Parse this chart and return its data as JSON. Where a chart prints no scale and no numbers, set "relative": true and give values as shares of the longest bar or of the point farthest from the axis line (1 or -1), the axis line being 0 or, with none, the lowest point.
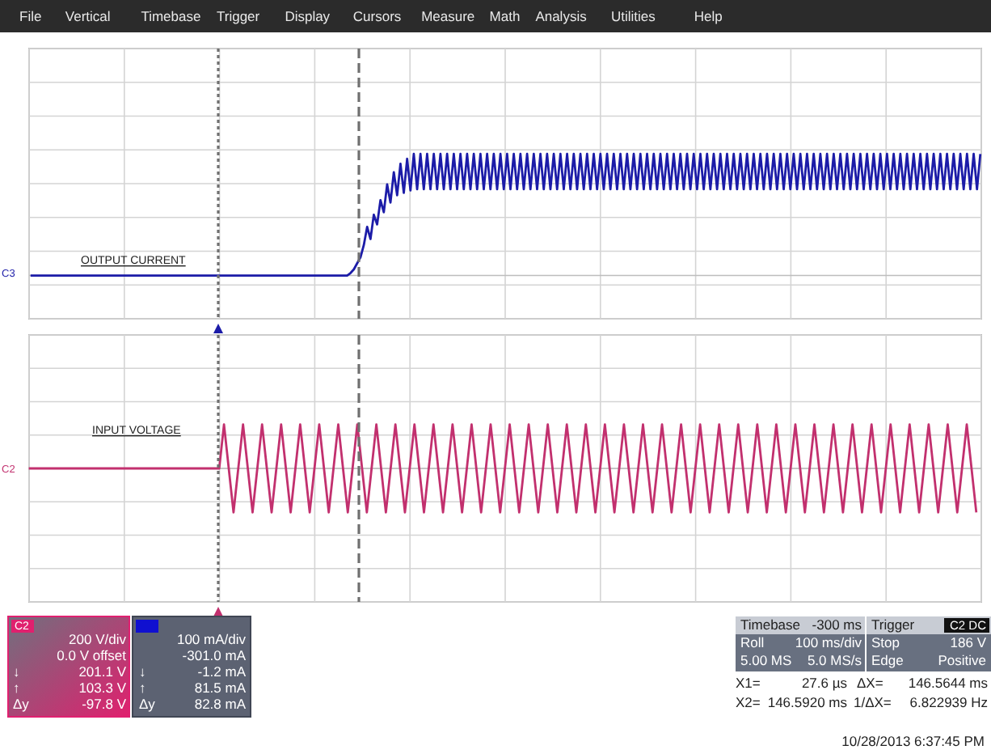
{
  "chart_data": [
    {
      "type": "line",
      "relative": true,
      "grid": true,
      "categories": [
        null,
        null,
        null,
        null,
        null,
        null,
        null,
        null,
        null,
        null,
        null,
        null,
        null,
        null,
        null,
        null,
        null,
        null,
        null,
        null,
        null,
        null,
        null,
        null,
        null,
        null,
        null,
        null,
        null,
        null,
        null,
        null,
        null,
        null,
        null,
        null,
        null,
        null,
        null,
        null,
        null,
        null,
        null,
        null,
        null,
        null,
        null,
        null,
        null,
        null,
        null,
        null,
        null,
        null,
        null,
        null,
        null,
        null,
        null,
        null,
        null,
        null,
        null,
        null,
        null,
        null,
        null,
        null,
        null,
        null,
        null,
        null,
        null,
        null,
        null,
        null,
        null,
        null,
        null,
        null,
        null,
        null,
        null,
        null,
        null,
        null,
        null,
        null,
        null,
        null,
        null,
        null,
        null,
        null,
        null,
        null,
        null,
        null,
        null,
        null,
        null,
        null,
        null,
        null,
        null,
        null,
        null,
        null,
        null,
        null,
        null,
        null,
        null,
        null,
        null,
        null,
        null,
        null,
        null,
        null,
        null,
        null,
        null,
        null,
        null,
        null,
        null,
        null,
        null,
        null,
        null,
        null,
        null,
        null,
        null,
        null,
        null,
        null,
        null,
        null,
        null,
        null,
        null,
        null,
        null,
        null,
        null,
        null,
        null,
        null,
        null,
        null,
        null,
        null,
        null,
        null,
        null,
        null,
        null,
        null,
        null,
        null,
        null,
        null,
        null,
        null,
        null,
        null,
        null,
        null,
        null,
        null,
        null,
        null,
        null,
        null,
        null,
        null,
        null,
        null,
        null,
        null,
        null,
        null,
        null,
        null,
        null,
        null,
        null,
        null,
        null,
        null,
        null,
        null,
        null,
        null,
        null,
        null,
        null,
        null,
        null,
        null,
        null,
        null,
        null,
        null,
        null,
        null,
        null,
        null,
        null,
        null,
        null,
        null,
        null,
        null,
        null,
        null,
        null,
        null,
        null,
        null,
        null,
        null,
        null,
        null,
        null,
        null,
        null,
        null,
        null,
        null,
        null,
        null,
        null,
        null,
        null,
        null,
        null,
        null,
        null,
        null,
        null,
        null,
        null,
        null,
        null,
        null,
        null,
        null,
        null,
        null,
        null,
        null,
        null,
        null,
        null,
        null,
        null,
        null,
        null,
        null,
        null,
        null,
        null,
        null,
        null,
        null,
        null,
        null,
        null,
        null,
        null,
        null,
        null,
        null,
        null,
        null,
        null,
        null,
        null,
        null,
        null,
        null,
        null,
        null
      ],
      "annotations": [
        "OUTPUT CURRENT",
        "C3"
      ],
      "series": [
        {
          "color": "#1c1ca8",
          "values": [
            0,
            0,
            0,
            0,
            0,
            0,
            0,
            0,
            0,
            0,
            0,
            0,
            0,
            0,
            0,
            0,
            0,
            0,
            0,
            0,
            0,
            0,
            0,
            0,
            0,
            0,
            0,
            0,
            0,
            0,
            0,
            0,
            0,
            0,
            0,
            0,
            0,
            0,
            0,
            0,
            0,
            0,
            0,
            0,
            0,
            0,
            0,
            0,
            0,
            0,
            0,
            0,
            0,
            0,
            0,
            0,
            0,
            0,
            0,
            0,
            0,
            0,
            0,
            0,
            0,
            0,
            0,
            0,
            0,
            0,
            0,
            0,
            0,
            0,
            0,
            0,
            0,
            0,
            0,
            0,
            0,
            0,
            0,
            0,
            0,
            0,
            0,
            0,
            0,
            0,
            0,
            0,
            0,
            0,
            0,
            0,
            0.02,
            0.05,
            0.1,
            0.15,
            0.25,
            0.4,
            0.3,
            0.5,
            0.42,
            0.62,
            0.52,
            0.75,
            0.6,
            0.85,
            0.66,
            0.92,
            0.68,
            0.96,
            0.7,
            1,
            0.71,
            1,
            0.71,
            1,
            0.71,
            1,
            0.71,
            1,
            0.71,
            1,
            0.71,
            1,
            0.71,
            1,
            0.71,
            1,
            0.71,
            1,
            0.71,
            1,
            0.71,
            1,
            0.71,
            1,
            0.71,
            1,
            0.71,
            1,
            0.71,
            1,
            0.71,
            1,
            0.71,
            1,
            0.71,
            1,
            0.71,
            1,
            0.71,
            1,
            0.71,
            1,
            0.71,
            1,
            0.71,
            1,
            0.71,
            1,
            0.71,
            1,
            0.71,
            1,
            0.71,
            1,
            0.71,
            1,
            0.71,
            1,
            0.71,
            1,
            0.71,
            1,
            0.71,
            1,
            0.71,
            1,
            0.71,
            1,
            0.71,
            1,
            0.71,
            1,
            0.71,
            1,
            0.71,
            1,
            0.71,
            1,
            0.71,
            1,
            0.71,
            1,
            0.71,
            1,
            0.71,
            1,
            0.71,
            1,
            0.71,
            1,
            0.71,
            1,
            0.71,
            1,
            0.71,
            1,
            0.71,
            1,
            0.71,
            1,
            0.71,
            1,
            0.71,
            1,
            0.71,
            1,
            0.71,
            1,
            0.71,
            1,
            0.71,
            1,
            0.71,
            1,
            0.71,
            1,
            0.71,
            1,
            0.71,
            1,
            0.71,
            1,
            0.71,
            1,
            0.71,
            1,
            0.71,
            1,
            0.71,
            1,
            0.71,
            1,
            0.71,
            1,
            0.71,
            1,
            0.71,
            1,
            0.71,
            1,
            0.71,
            1,
            0.71,
            1,
            0.71,
            1,
            0.71,
            1,
            0.71,
            1,
            0.71,
            1,
            0.71,
            1,
            0.71,
            1,
            0.71,
            1,
            0.71,
            1,
            0.71,
            1,
            0.71,
            1,
            0.71,
            1,
            0.71,
            1,
            0.71,
            1
          ]
        }
      ]
    },
    {
      "type": "line",
      "relative": true,
      "grid": true,
      "categories": [
        null,
        null,
        null,
        null,
        null,
        null,
        null,
        null,
        null,
        null,
        null,
        null,
        null,
        null,
        null,
        null,
        null,
        null,
        null,
        null,
        null,
        null,
        null,
        null,
        null,
        null,
        null,
        null,
        null,
        null,
        null,
        null,
        null,
        null,
        null,
        null,
        null,
        null,
        null,
        null,
        null,
        null,
        null,
        null,
        null,
        null,
        null,
        null,
        null,
        null,
        null,
        null,
        null,
        null,
        null,
        null,
        null,
        null,
        null,
        null,
        null,
        null,
        null,
        null,
        null,
        null,
        null,
        null,
        null,
        null,
        null,
        null,
        null,
        null,
        null,
        null,
        null,
        null,
        null,
        null,
        null,
        null,
        null,
        null,
        null,
        null,
        null,
        null,
        null,
        null,
        null,
        null,
        null,
        null,
        null,
        null,
        null,
        null,
        null,
        null,
        null,
        null,
        null,
        null,
        null,
        null,
        null,
        null,
        null,
        null,
        null,
        null,
        null,
        null,
        null,
        null,
        null,
        null,
        null,
        null,
        null,
        null,
        null,
        null,
        null,
        null,
        null,
        null,
        null,
        null,
        null,
        null,
        null,
        null,
        null,
        null,
        null,
        null,
        null,
        null,
        null,
        null,
        null,
        null,
        null,
        null,
        null,
        null,
        null,
        null,
        null,
        null,
        null,
        null,
        null,
        null,
        null,
        null,
        null,
        null,
        null,
        null,
        null,
        null,
        null,
        null,
        null,
        null,
        null,
        null,
        null,
        null,
        null,
        null,
        null,
        null,
        null,
        null,
        null,
        null,
        null,
        null,
        null,
        null,
        null,
        null,
        null,
        null,
        null,
        null,
        null,
        null,
        null,
        null,
        null,
        null,
        null,
        null,
        null,
        null
      ],
      "annotations": [
        "INPUT VOLTAGE",
        "C2"
      ],
      "series": [
        {
          "color": "#c2306e",
          "values": [
            0,
            0,
            0,
            0,
            0,
            0,
            0,
            0,
            0,
            0,
            0,
            0,
            0,
            0,
            0,
            0,
            0,
            0,
            0,
            0,
            0,
            0,
            0,
            0,
            0,
            0,
            0,
            0,
            0,
            0,
            0,
            0,
            0,
            0,
            0,
            0,
            0,
            0,
            0,
            0,
            0,
            1,
            0,
            -1,
            0,
            1,
            0,
            -1,
            0,
            1,
            0,
            -1,
            0,
            1,
            0,
            -1,
            0,
            1,
            0,
            -1,
            0,
            1,
            0,
            -1,
            0,
            1,
            0,
            -1,
            0,
            1,
            0,
            -1,
            0,
            1,
            0,
            -1,
            0,
            1,
            0,
            -1,
            0,
            1,
            0,
            -1,
            0,
            1,
            0,
            -1,
            0,
            1,
            0,
            -1,
            0,
            1,
            0,
            -1,
            0,
            1,
            0,
            -1,
            0,
            1,
            0,
            -1,
            0,
            1,
            0,
            -1,
            0,
            1,
            0,
            -1,
            0,
            1,
            0,
            -1,
            0,
            1,
            0,
            -1,
            0,
            1,
            0,
            -1,
            0,
            1,
            0,
            -1,
            0,
            1,
            0,
            -1,
            0,
            1,
            0,
            -1,
            0,
            1,
            0,
            -1,
            0,
            1,
            0,
            -1,
            0,
            1,
            0,
            -1,
            0,
            1,
            0,
            -1,
            0,
            1,
            0,
            -1,
            0,
            1,
            0,
            -1,
            0,
            1,
            0,
            -1,
            0,
            1,
            0,
            -1,
            0,
            1,
            0,
            -1,
            0,
            1,
            0,
            -1,
            0,
            1,
            0,
            -1,
            0,
            1,
            0,
            -1,
            0,
            1,
            0,
            -1,
            0,
            1,
            0,
            -1,
            0,
            1,
            0,
            -1,
            0,
            1,
            0,
            -1
          ]
        }
      ]
    },
    {
      "type": "other",
      "annotations": [
        "File",
        "Vertical",
        "Timebase",
        "Trigger",
        "Display",
        "Cursors",
        "Measure",
        "Math",
        "Analysis",
        "Utilities",
        "Help",
        "C2",
        "200 V/div",
        "0.0 V offset",
        "↓",
        "201.1 V",
        "↑",
        "103.3 V",
        "Δy",
        "-97.8 V",
        "100 mA/div",
        "-301.0 mA",
        "↓",
        "-1.2 mA",
        "↑",
        "81.5 mA",
        "Δy",
        "82.8 mA",
        "Timebase",
        "-300 ms",
        "Roll",
        "100 ms/div",
        "5.00 MS",
        "5.0 MS/s",
        "Trigger",
        "C2 DC",
        "Stop",
        "186 V",
        "Edge",
        "Positive",
        "X1=",
        "27.6 µs",
        "ΔX=",
        "146.5644 ms",
        "X2=",
        "146.5920 ms",
        "1/ΔX=",
        "6.822939 Hz",
        "10/28/2013 6:37:45 PM"
      ]
    }
  ]
}
